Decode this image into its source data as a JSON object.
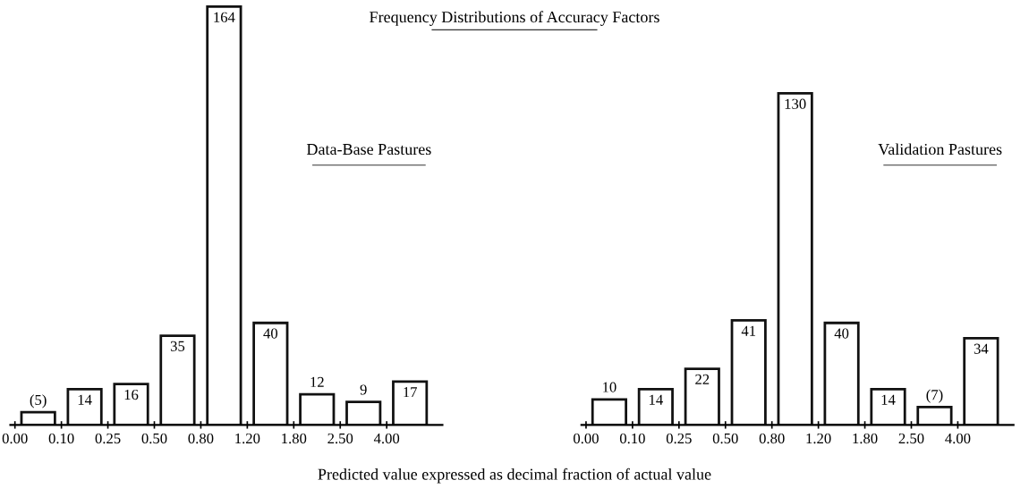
{
  "chart_data": [
    {
      "type": "bar",
      "title": "Data-Base Pastures",
      "categories": [
        "0.00",
        "0.10",
        "0.25",
        "0.50",
        "0.80",
        "1.20",
        "1.80",
        "2.50",
        "4.00"
      ],
      "values": [
        5,
        14,
        16,
        35,
        164,
        40,
        12,
        9,
        17
      ],
      "value_labels": [
        "(5)",
        "14",
        "16",
        "35",
        "164",
        "40",
        "12",
        "9",
        "17"
      ],
      "color": "#ffffff",
      "tick_labels": "x",
      "grid": false,
      "legend": false,
      "annotations": [
        "Frequency Distributions of Accuracy Factors",
        "Predicted value expressed as decimal fraction of actual value"
      ]
    },
    {
      "type": "bar",
      "title": "Validation Pastures",
      "categories": [
        "0.00",
        "0.10",
        "0.25",
        "0.50",
        "0.80",
        "1.20",
        "1.80",
        "2.50",
        "4.00"
      ],
      "values": [
        10,
        14,
        22,
        41,
        130,
        40,
        14,
        7,
        34
      ],
      "value_labels": [
        "10",
        "14",
        "22",
        "41",
        "130",
        "40",
        "14",
        "(7)",
        "34"
      ],
      "color": "#ffffff",
      "tick_labels": "x",
      "grid": false,
      "legend": false
    }
  ]
}
